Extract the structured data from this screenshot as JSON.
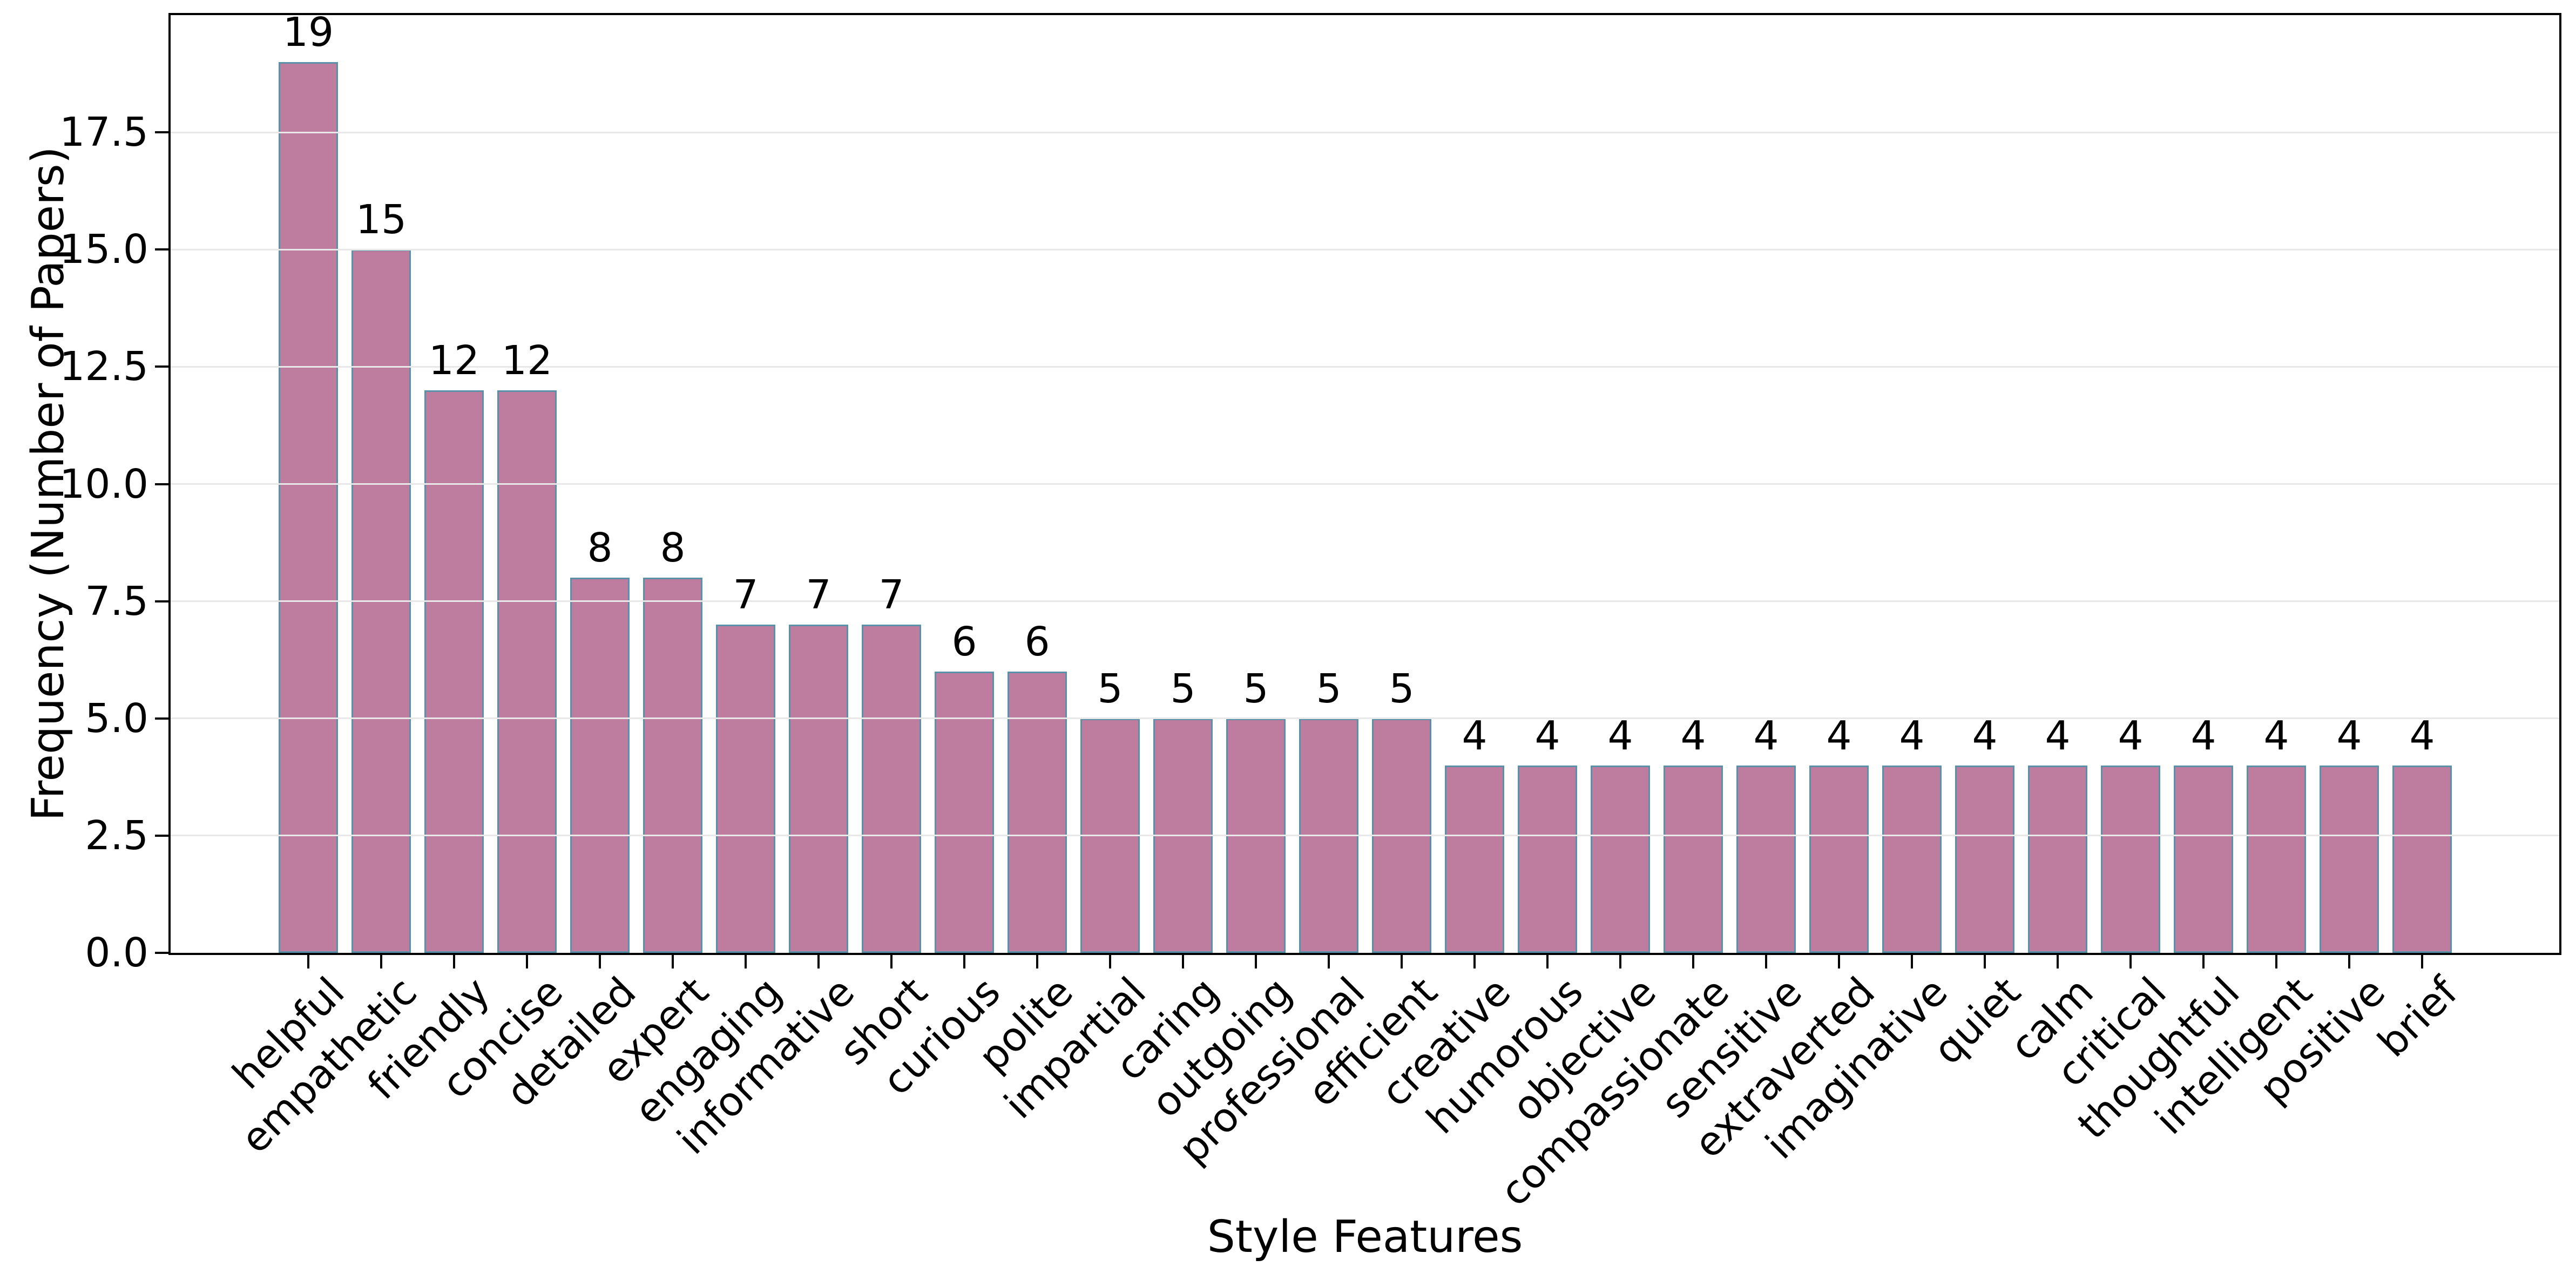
{
  "chart_data": {
    "type": "bar",
    "title": "",
    "xlabel": "Style Features",
    "ylabel": "Frequency (Number of Papers)",
    "categories": [
      "helpful",
      "empathetic",
      "friendly",
      "concise",
      "detailed",
      "expert",
      "engaging",
      "informative",
      "short",
      "curious",
      "polite",
      "impartial",
      "caring",
      "outgoing",
      "professional",
      "efficient",
      "creative",
      "humorous",
      "objective",
      "compassionate",
      "sensitive",
      "extraverted",
      "imaginative",
      "quiet",
      "calm",
      "critical",
      "thoughtful",
      "intelligent",
      "positive",
      "brief"
    ],
    "values": [
      19,
      15,
      12,
      12,
      8,
      8,
      7,
      7,
      7,
      6,
      6,
      5,
      5,
      5,
      5,
      5,
      4,
      4,
      4,
      4,
      4,
      4,
      4,
      4,
      4,
      4,
      4,
      4,
      4,
      4
    ],
    "bar_labels_shown": true,
    "ytick_labels": [
      "0.0",
      "2.5",
      "5.0",
      "7.5",
      "10.0",
      "12.5",
      "15.0",
      "17.5"
    ],
    "ylim": [
      0,
      20
    ],
    "xtick_rotation_deg": 45,
    "grid": "horizontal, drawn above bars",
    "legend": "none",
    "colors": {
      "bar_fill": "#BE7C9E",
      "bar_edge": "#5A90A8",
      "gridline": "#E8E8E8",
      "spine": "#000000",
      "text": "#000000",
      "background": "#FFFFFF"
    }
  }
}
